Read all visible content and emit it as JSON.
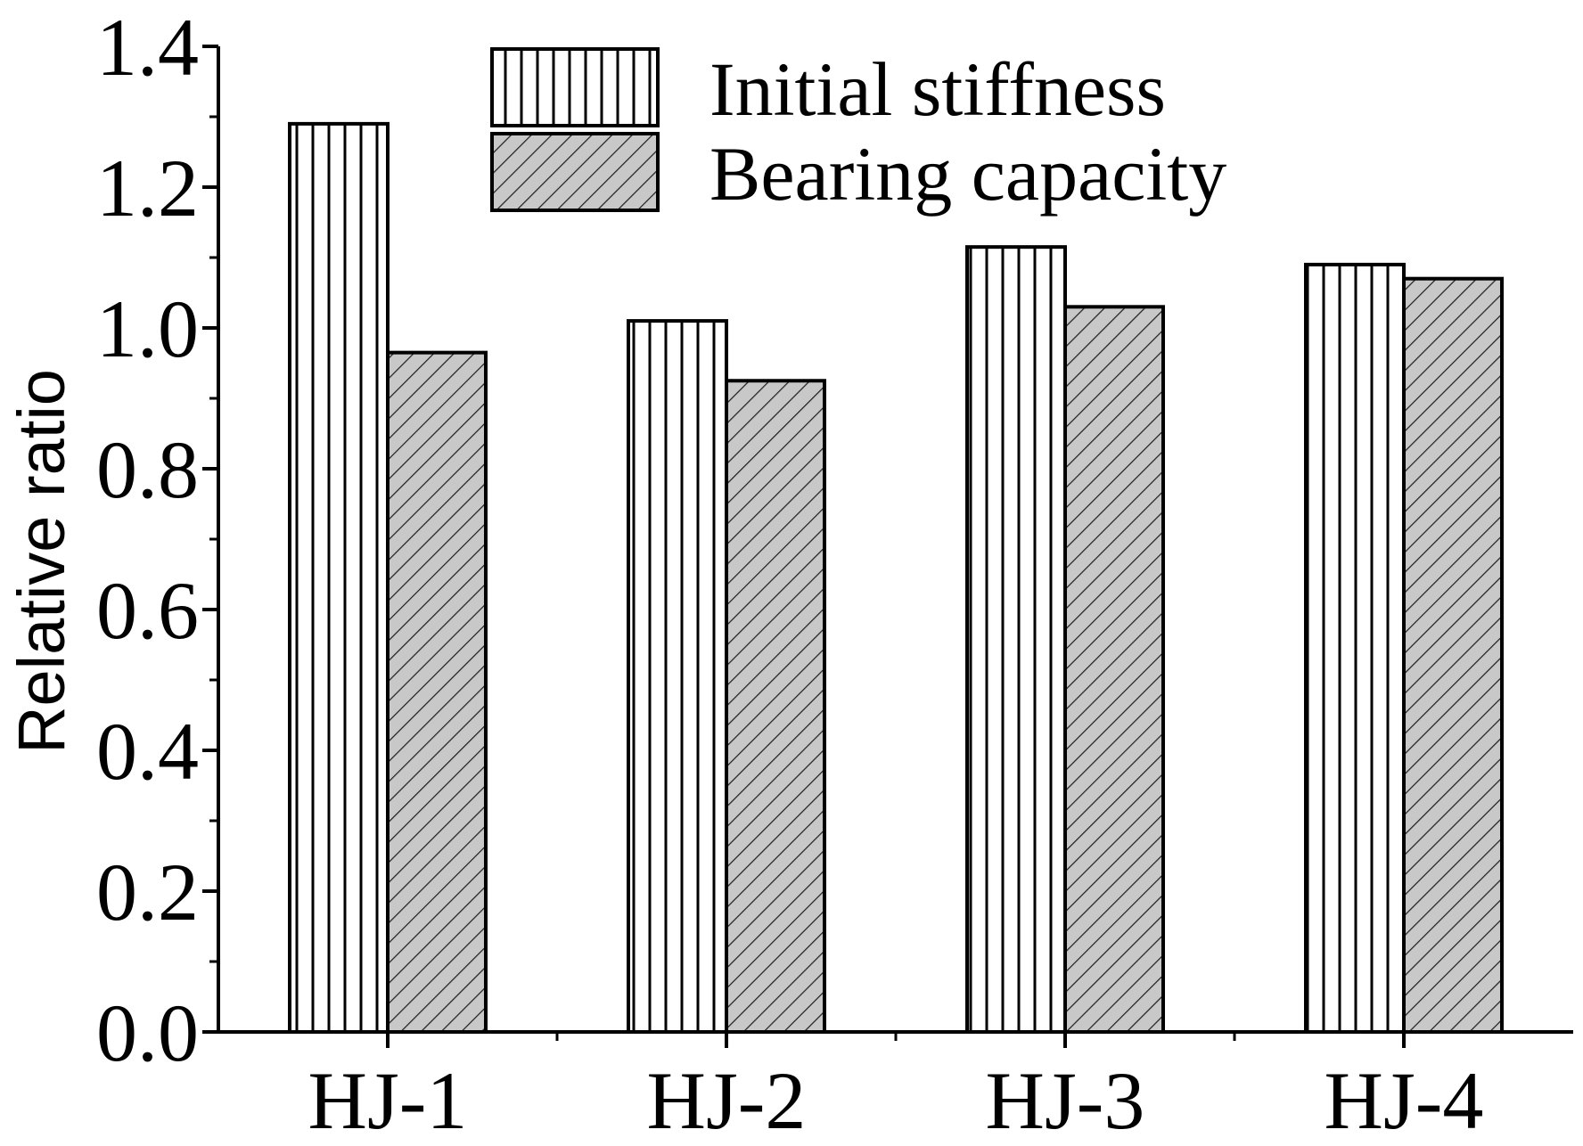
{
  "chart_data": {
    "type": "bar",
    "title": "",
    "xlabel": "",
    "ylabel": "Relative ratio",
    "ylim": [
      0,
      1.4
    ],
    "yticks": [
      "0.0",
      "0.2",
      "0.4",
      "0.6",
      "0.8",
      "1.0",
      "1.2",
      "1.4"
    ],
    "categories": [
      "HJ-1",
      "HJ-2",
      "HJ-3",
      "HJ-4"
    ],
    "series": [
      {
        "name": "Initial stiffness",
        "values": [
          1.29,
          1.01,
          1.115,
          1.09
        ],
        "pattern": "vertical-lines",
        "fill": "#ffffff"
      },
      {
        "name": "Bearing capacity",
        "values": [
          0.965,
          0.925,
          1.03,
          1.07
        ],
        "pattern": "diagonal-hatch",
        "fill": "#c8c8c8"
      }
    ],
    "grid": false,
    "legend_position": "top-center"
  }
}
